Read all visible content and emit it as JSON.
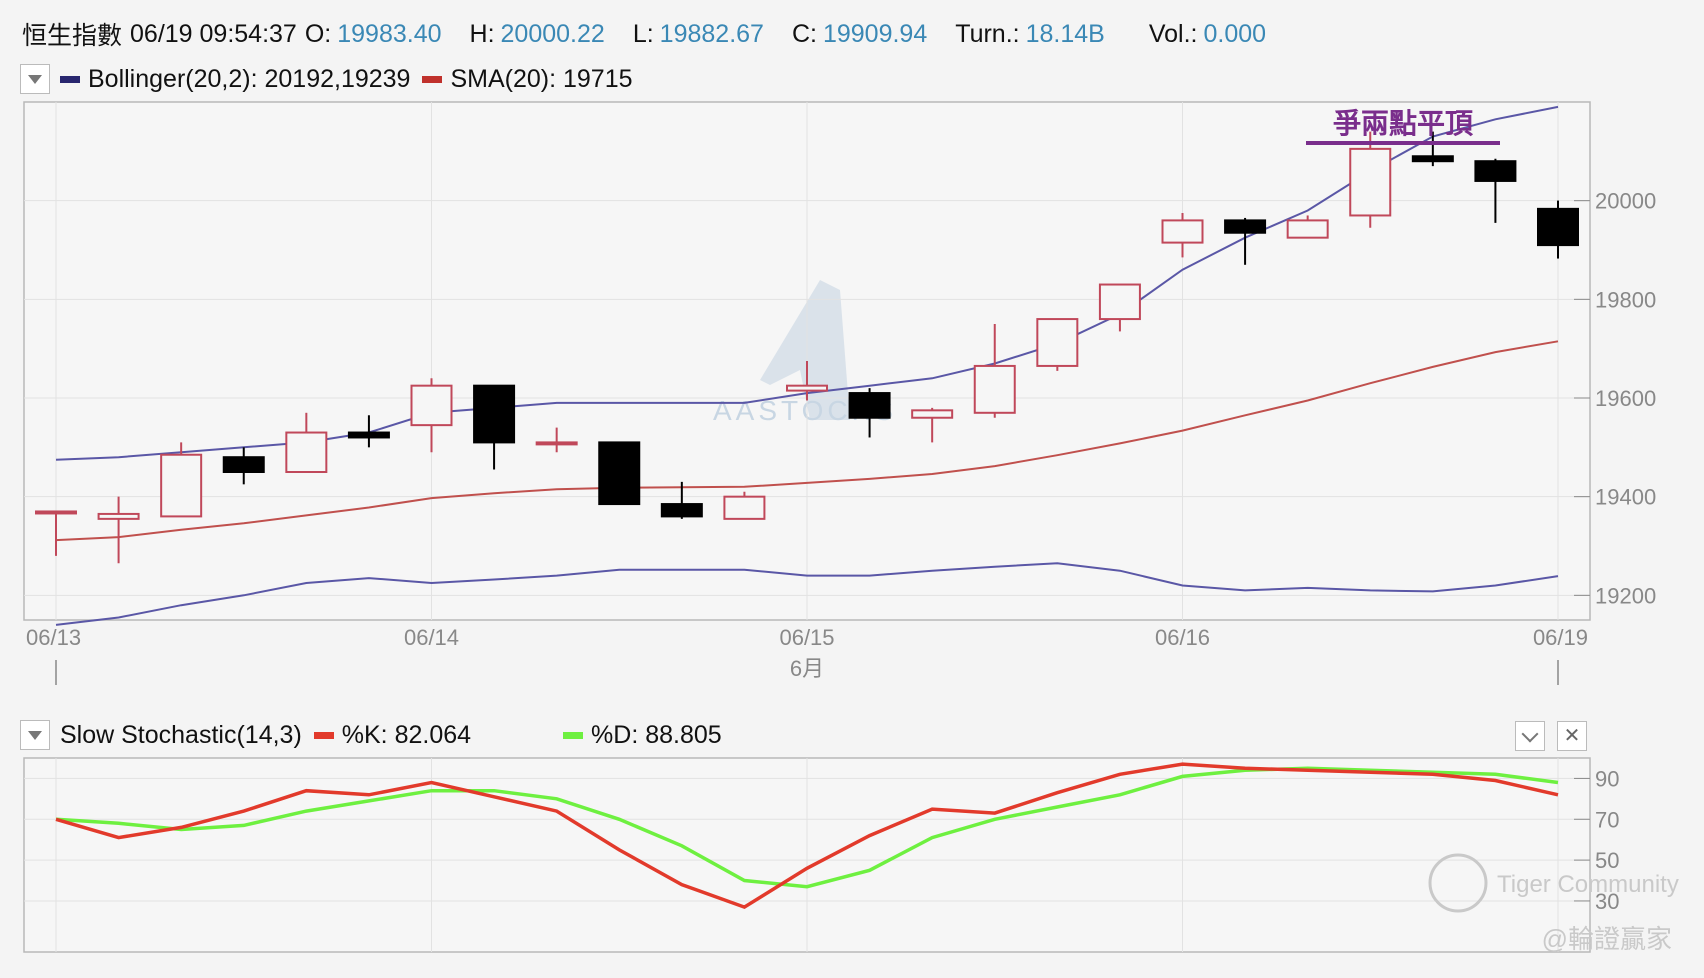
{
  "quote": {
    "symbol": "恒生指數",
    "datetime": "06/19 09:54:37",
    "open_label": "O:",
    "open": "19983.40",
    "high_label": "H:",
    "high": "20000.22",
    "low_label": "L:",
    "low": "19882.67",
    "close_label": "C:",
    "close": "19909.94",
    "turnover_label": "Turn.:",
    "turnover": "18.14B",
    "volume_label": "Vol.:",
    "volume": "0.000"
  },
  "main_legend": {
    "bollinger": "Bollinger(20,2): 20192,19239",
    "sma": "SMA(20): 19715"
  },
  "stoch_legend": {
    "name": "Slow Stochastic(14,3)",
    "k": "%K: 82.064",
    "d": "%D: 88.805"
  },
  "annotation": "爭兩點平頂",
  "watermarks": {
    "chart": "AASTOCKS",
    "brand": "Tiger Community",
    "author": "@輪證贏家"
  },
  "colors": {
    "up_candle": "#c0485a",
    "down_candle": "#000000",
    "bollinger": "#5a57a6",
    "sma": "#c0504d",
    "k_line": "#e23a2b",
    "d_line": "#6ef040",
    "annotation": "#7a2e8c",
    "value_text": "#3a88b5",
    "legend_bollinger": "#28266e",
    "legend_sma": "#c0312c"
  },
  "chart_data": [
    {
      "type": "candlestick",
      "title": "",
      "x_tick_labels": [
        "06/13",
        "06/14",
        "06/15",
        "06/16",
        "06/19"
      ],
      "x_sublabel": "6月",
      "y_ticks": [
        19200,
        19400,
        19600,
        19800,
        20000
      ],
      "ylim": [
        19150,
        20200
      ],
      "grid": true,
      "candles": [
        {
          "o": 19370,
          "h": 19370,
          "l": 19280,
          "c": 19370
        },
        {
          "o": 19355,
          "h": 19400,
          "l": 19265,
          "c": 19365
        },
        {
          "o": 19360,
          "h": 19510,
          "l": 19360,
          "c": 19485
        },
        {
          "o": 19480,
          "h": 19500,
          "l": 19425,
          "c": 19450
        },
        {
          "o": 19450,
          "h": 19570,
          "l": 19450,
          "c": 19530
        },
        {
          "o": 19530,
          "h": 19565,
          "l": 19500,
          "c": 19520
        },
        {
          "o": 19545,
          "h": 19640,
          "l": 19490,
          "c": 19625
        },
        {
          "o": 19625,
          "h": 19625,
          "l": 19455,
          "c": 19510
        },
        {
          "o": 19510,
          "h": 19540,
          "l": 19490,
          "c": 19510
        },
        {
          "o": 19510,
          "h": 19510,
          "l": 19385,
          "c": 19385
        },
        {
          "o": 19385,
          "h": 19430,
          "l": 19355,
          "c": 19360
        },
        {
          "o": 19355,
          "h": 19410,
          "l": 19355,
          "c": 19400
        },
        {
          "o": 19615,
          "h": 19675,
          "l": 19595,
          "c": 19625
        },
        {
          "o": 19610,
          "h": 19620,
          "l": 19520,
          "c": 19560
        },
        {
          "o": 19560,
          "h": 19580,
          "l": 19510,
          "c": 19575
        },
        {
          "o": 19570,
          "h": 19750,
          "l": 19560,
          "c": 19665
        },
        {
          "o": 19665,
          "h": 19760,
          "l": 19655,
          "c": 19760
        },
        {
          "o": 19760,
          "h": 19830,
          "l": 19735,
          "c": 19830
        },
        {
          "o": 19915,
          "h": 19975,
          "l": 19885,
          "c": 19960
        },
        {
          "o": 19960,
          "h": 19965,
          "l": 19870,
          "c": 19935
        },
        {
          "o": 19925,
          "h": 19970,
          "l": 19925,
          "c": 19960
        },
        {
          "o": 19970,
          "h": 20140,
          "l": 19945,
          "c": 20105
        },
        {
          "o": 20090,
          "h": 20140,
          "l": 20070,
          "c": 20080
        },
        {
          "o": 20080,
          "h": 20085,
          "l": 19955,
          "c": 20040
        },
        {
          "o": 19983.4,
          "h": 20000.22,
          "l": 19882.67,
          "c": 19909.94
        }
      ],
      "series": [
        {
          "name": "Bollinger(20,2)",
          "values": [
            19475,
            19480,
            19490,
            19500,
            19510,
            19530,
            19570,
            19580,
            19590,
            19590,
            19590,
            19590,
            19610,
            19625,
            19640,
            19670,
            19710,
            19770,
            19860,
            19925,
            19980,
            20060,
            20130,
            20165,
            20190
          ]
        },
        {
          "name": "SMA(20)",
          "values": [
            19312,
            19318,
            19333,
            19346,
            19362,
            19378,
            19397,
            19407,
            19415,
            19418,
            19419,
            19420,
            19428,
            19436,
            19446,
            19462,
            19484,
            19508,
            19534,
            19565,
            19595,
            19630,
            19663,
            19693,
            19715
          ]
        },
        {
          "values": [
            19140,
            19155,
            19180,
            19200,
            19225,
            19235,
            19225,
            19232,
            19240,
            19252,
            19252,
            19252,
            19240,
            19240,
            19250,
            19258,
            19265,
            19250,
            19220,
            19210,
            19215,
            19210,
            19208,
            19220,
            19239
          ]
        }
      ],
      "annotation_level": 20117
    },
    {
      "type": "line",
      "title": "",
      "y_ticks": [
        30,
        50,
        70,
        90
      ],
      "ylim": [
        5,
        100
      ],
      "grid": true,
      "series": [
        {
          "name": "%K",
          "values": [
            70,
            61,
            66,
            74,
            84,
            82,
            88,
            81,
            74,
            55,
            38,
            27,
            46,
            62,
            75,
            73,
            83,
            92,
            97,
            95,
            94,
            93,
            92,
            89,
            82
          ]
        },
        {
          "name": "%D",
          "values": [
            70,
            68,
            65,
            67,
            74,
            79,
            84,
            84,
            80,
            70,
            57,
            40,
            37,
            45,
            61,
            70,
            76,
            82,
            91,
            94,
            95,
            94,
            93,
            92,
            88
          ]
        }
      ]
    }
  ]
}
